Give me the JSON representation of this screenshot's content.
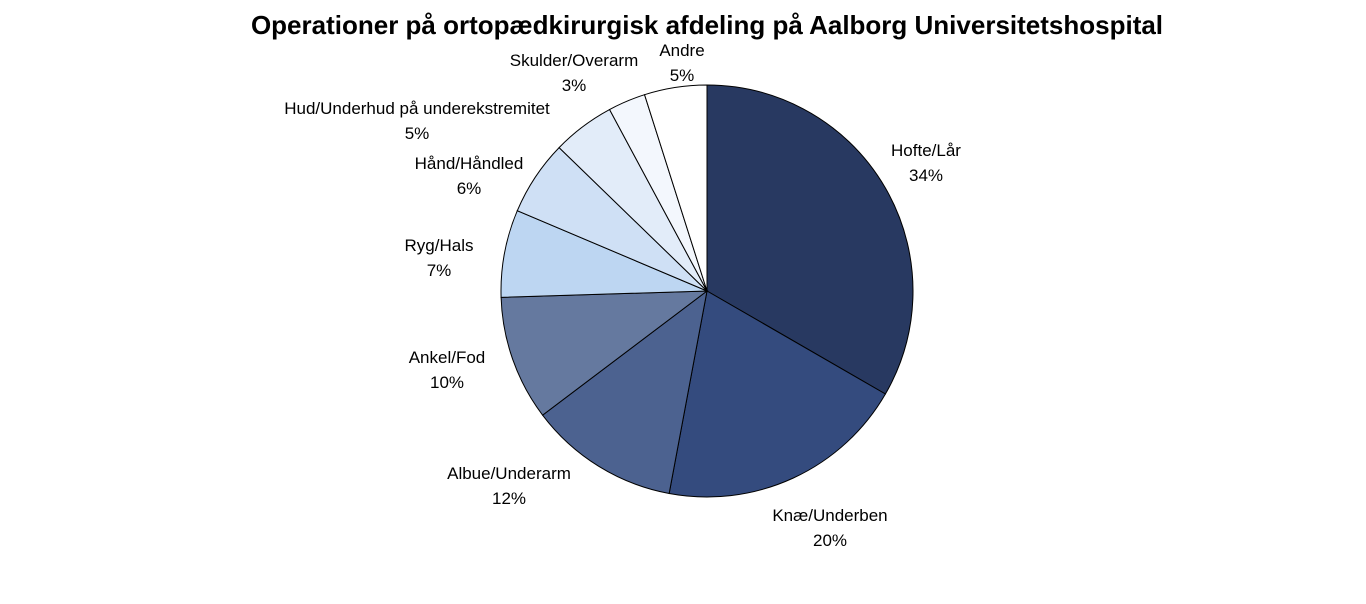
{
  "chart_data": {
    "type": "pie",
    "title": "Operationer på ortopædkirurgisk afdeling på Aalborg Universitetshospital",
    "slices": [
      {
        "label": "Hofte/Lår",
        "value": 34,
        "value_label": "34%",
        "color": "#283961"
      },
      {
        "label": "Knæ/Underben",
        "value": 20,
        "value_label": "20%",
        "color": "#344b7e"
      },
      {
        "label": "Albue/Underarm",
        "value": 12,
        "value_label": "12%",
        "color": "#4c6290"
      },
      {
        "label": "Ankel/Fod",
        "value": 10,
        "value_label": "10%",
        "color": "#65799f"
      },
      {
        "label": "Ryg/Hals",
        "value": 7,
        "value_label": "7%",
        "color": "#bdd6f2"
      },
      {
        "label": "Hånd/Håndled",
        "value": 6,
        "value_label": "6%",
        "color": "#cfe0f5"
      },
      {
        "label": "Hud/Underhud på underekstremitet",
        "value": 5,
        "value_label": "5%",
        "color": "#e2ecf9"
      },
      {
        "label": "Skulder/Overarm",
        "value": 3,
        "value_label": "3%",
        "color": "#f3f7fd"
      },
      {
        "label": "Andre",
        "value": 5,
        "value_label": "5%",
        "color": "#ffffff"
      }
    ],
    "start_angle": "12 o'clock",
    "direction": "clockwise",
    "legend": "none"
  }
}
